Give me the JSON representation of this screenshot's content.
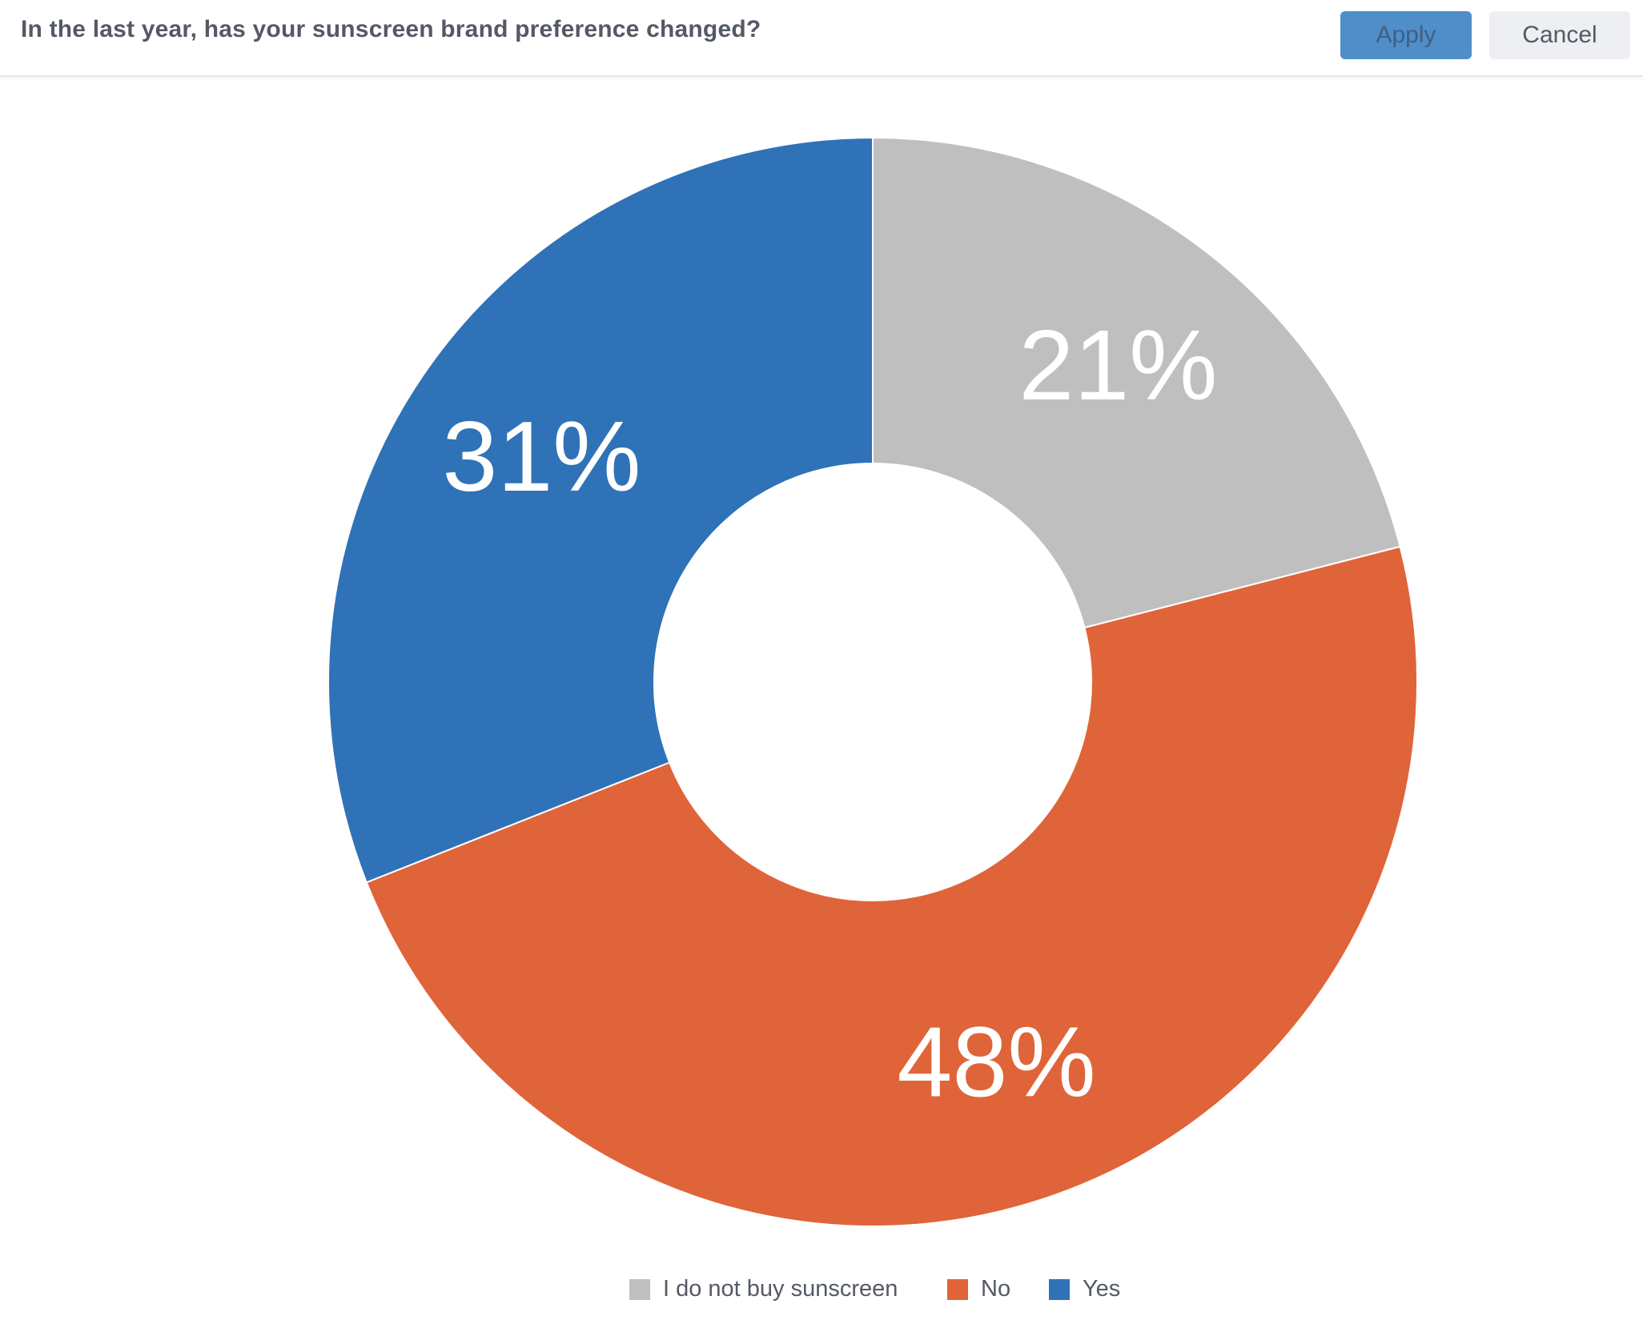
{
  "header": {
    "question": "In the last year, has your sunscreen brand preference changed?",
    "apply_label": "Apply",
    "cancel_label": "Cancel"
  },
  "colors": {
    "header_text": "#545965",
    "apply_bg": "#4f8ec9",
    "cancel_bg": "#eeeff2"
  },
  "chart_data": {
    "type": "pie",
    "variant": "donut",
    "start_angle_deg": 0,
    "direction": "clockwise",
    "slices": [
      {
        "label": "I do not buy sunscreen",
        "value": 21,
        "display": "21%",
        "color": "#bfbfbf"
      },
      {
        "label": "No",
        "value": 48,
        "display": "48%",
        "color": "#e06439"
      },
      {
        "label": "Yes",
        "value": 31,
        "display": "31%",
        "color": "#2f72b7"
      }
    ],
    "legend_position": "bottom-center"
  }
}
